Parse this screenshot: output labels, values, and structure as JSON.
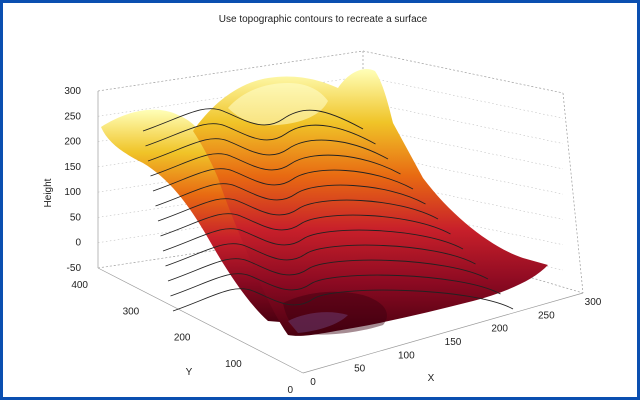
{
  "window": {
    "border_color": "#0b4fb0"
  },
  "chart_data": {
    "type": "surface",
    "title": "Use topographic contours to recreate a surface",
    "xlabel": "X",
    "ylabel": "Y",
    "zlabel": "Height",
    "xlim": [
      0,
      300
    ],
    "ylim": [
      0,
      400
    ],
    "zlim": [
      -50,
      300
    ],
    "x_ticks": [
      "0",
      "50",
      "100",
      "150",
      "200",
      "250",
      "300"
    ],
    "y_ticks": [
      "0",
      "100",
      "200",
      "300",
      "400"
    ],
    "z_ticks": [
      "-50",
      "0",
      "50",
      "100",
      "150",
      "200",
      "250",
      "300"
    ],
    "grid": true,
    "colormap": "hot",
    "contours": "black topographic contour lines across the surface",
    "colors": {
      "low": "#5a0010",
      "mid_low": "#b0102a",
      "mid": "#e05a10",
      "mid_high": "#f0c020",
      "high": "#ffffa0",
      "contour": "#222222",
      "grid": "#9a9a9a"
    }
  }
}
